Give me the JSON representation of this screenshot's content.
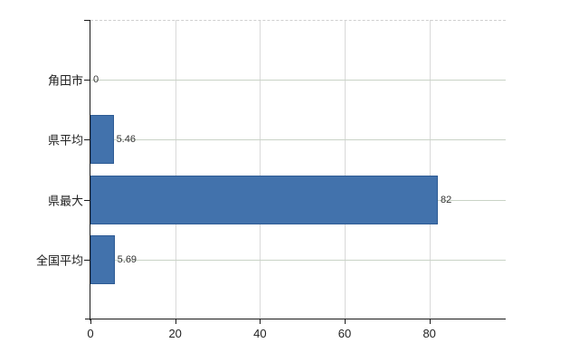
{
  "chart_data": {
    "type": "bar",
    "orientation": "horizontal",
    "title": "",
    "xlabel": "",
    "ylabel": "",
    "categories": [
      "角田市",
      "県平均",
      "県最大",
      "全国平均"
    ],
    "values": [
      0,
      5.46,
      82,
      5.69
    ],
    "value_labels": [
      "0",
      "5.46",
      "82",
      "5.69"
    ],
    "x_ticks": [
      0,
      20,
      40,
      60,
      80
    ],
    "x_tick_labels": [
      "0",
      "20",
      "40",
      "60",
      "80"
    ],
    "xlim": [
      0,
      98
    ],
    "grid": true,
    "legend": false,
    "colors": {
      "bar_fill": "#4272ac",
      "bar_border": "#2e5b94",
      "axis": "#1a1a1a",
      "grid_vertical": "#d9d9d9",
      "grid_horizontal": "#c9d3c6",
      "top_dashed_line": "#cfcfcf",
      "category_label": "#222222",
      "tick_label": "#222222",
      "value_label": "#333333",
      "background": "#ffffff"
    }
  }
}
